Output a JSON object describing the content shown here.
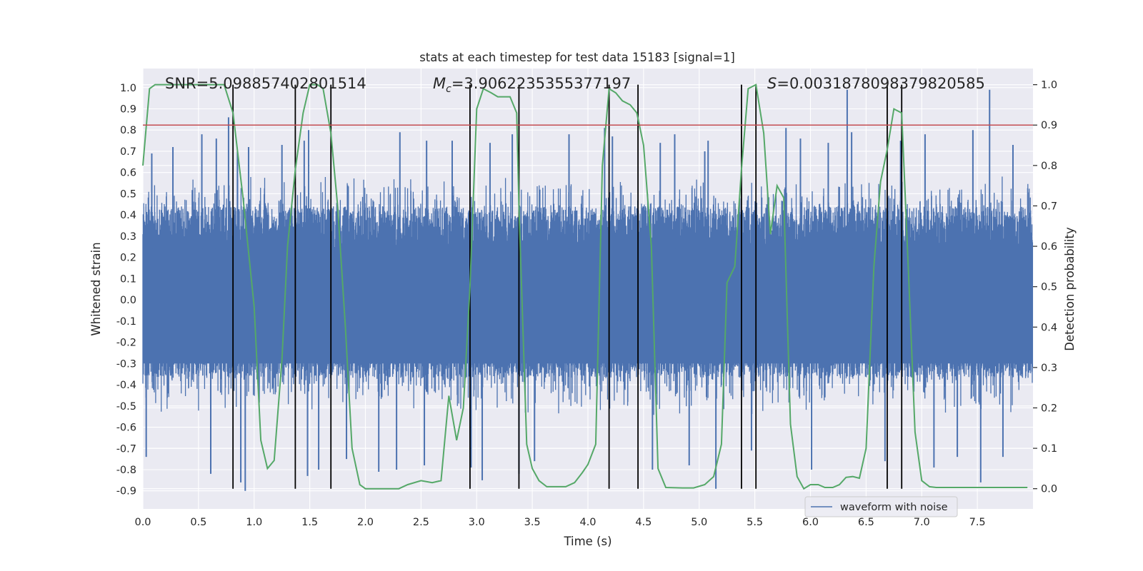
{
  "chart_data": {
    "type": "line",
    "title": "stats at each timestep for test data 15183 [signal=1]",
    "xlabel": "Time (s)",
    "ylabel": "Whitened strain",
    "y2label": "Detection probability",
    "xlim": [
      0.0,
      8.0
    ],
    "ylim": [
      -0.985,
      1.09
    ],
    "y2lim": [
      -0.05,
      1.04
    ],
    "xticks": [
      "0.0",
      "0.5",
      "1.0",
      "1.5",
      "2.0",
      "2.5",
      "3.0",
      "3.5",
      "4.0",
      "4.5",
      "5.0",
      "5.5",
      "6.0",
      "6.5",
      "7.0",
      "7.5"
    ],
    "yticks": [
      "1.0",
      "0.9",
      "0.8",
      "0.7",
      "0.6",
      "0.5",
      "0.4",
      "0.3",
      "0.2",
      "0.1",
      "0.0",
      "-0.1",
      "-0.2",
      "-0.3",
      "-0.4",
      "-0.5",
      "-0.6",
      "-0.7",
      "-0.8",
      "-0.9"
    ],
    "y2ticks": [
      "1.0",
      "0.9",
      "0.8",
      "0.7",
      "0.6",
      "0.5",
      "0.4",
      "0.3",
      "0.2",
      "0.1",
      "0.0"
    ],
    "grid": true,
    "legend": {
      "position": "bottom-right",
      "entries": [
        "waveform with noise"
      ]
    },
    "annotations": {
      "snr": "SNR=5.098857402801514",
      "mc_symbol": "M",
      "mc_sub": "c",
      "mc_value": "=3.9062235355377197",
      "s_symbol": "S",
      "s_value": "=0.0031878098379820585"
    },
    "threshold": 0.9,
    "vlines": [
      0.81,
      1.37,
      1.69,
      2.94,
      3.38,
      4.19,
      4.45,
      5.38,
      5.51,
      6.69,
      6.82
    ],
    "series": [
      {
        "name": "waveform with noise",
        "noise_envelope_pos": 0.42,
        "noise_envelope_neg": -0.35,
        "spikes": [
          [
            0.03,
            -0.74
          ],
          [
            0.08,
            0.69
          ],
          [
            0.27,
            0.72
          ],
          [
            0.53,
            0.78
          ],
          [
            0.61,
            -0.82
          ],
          [
            0.66,
            0.76
          ],
          [
            0.77,
            0.86
          ],
          [
            0.85,
            0.7
          ],
          [
            0.88,
            -0.86
          ],
          [
            0.92,
            -0.9
          ],
          [
            0.95,
            0.72
          ],
          [
            1.25,
            0.73
          ],
          [
            1.45,
            0.75
          ],
          [
            1.48,
            -0.83
          ],
          [
            1.49,
            0.8
          ],
          [
            1.58,
            -0.8
          ],
          [
            1.83,
            -0.75
          ],
          [
            2.12,
            -0.81
          ],
          [
            2.28,
            -0.8
          ],
          [
            2.31,
            0.79
          ],
          [
            2.53,
            -0.78
          ],
          [
            2.55,
            0.75
          ],
          [
            2.78,
            0.75
          ],
          [
            2.95,
            -0.79
          ],
          [
            3.05,
            -0.85
          ],
          [
            3.12,
            0.74
          ],
          [
            3.32,
            0.78
          ],
          [
            3.38,
            -0.82
          ],
          [
            3.52,
            -0.76
          ],
          [
            3.83,
            0.78
          ],
          [
            4.15,
            0.81
          ],
          [
            4.22,
            0.77
          ],
          [
            4.58,
            -0.8
          ],
          [
            4.65,
            0.74
          ],
          [
            4.78,
            0.78
          ],
          [
            4.91,
            -0.78
          ],
          [
            5.05,
            0.7
          ],
          [
            5.08,
            0.75
          ],
          [
            5.15,
            -0.89
          ],
          [
            5.47,
            -0.71
          ],
          [
            5.78,
            0.81
          ],
          [
            5.91,
            0.76
          ],
          [
            6.01,
            -0.8
          ],
          [
            6.16,
            0.74
          ],
          [
            6.33,
            0.99
          ],
          [
            6.37,
            0.79
          ],
          [
            6.67,
            -0.76
          ],
          [
            6.81,
            0.75
          ],
          [
            7.03,
            0.78
          ],
          [
            7.11,
            -0.79
          ],
          [
            7.32,
            -0.74
          ],
          [
            7.46,
            0.8
          ],
          [
            7.53,
            -0.86
          ],
          [
            7.61,
            0.99
          ],
          [
            7.73,
            -0.74
          ],
          [
            7.82,
            0.73
          ]
        ]
      },
      {
        "name": "detection probability",
        "x": [
          0.0,
          0.06,
          0.11,
          0.2,
          0.4,
          0.6,
          0.73,
          0.81,
          0.9,
          1.0,
          1.06,
          1.12,
          1.18,
          1.25,
          1.3,
          1.37,
          1.44,
          1.5,
          1.57,
          1.62,
          1.69,
          1.75,
          1.82,
          1.88,
          1.95,
          2.0,
          2.06,
          2.12,
          2.19,
          2.3,
          2.38,
          2.5,
          2.6,
          2.68,
          2.75,
          2.82,
          2.88,
          2.94,
          3.0,
          3.06,
          3.13,
          3.19,
          3.25,
          3.3,
          3.36,
          3.38,
          3.45,
          3.5,
          3.56,
          3.63,
          3.7,
          3.8,
          3.88,
          3.95,
          4.0,
          4.07,
          4.13,
          4.19,
          4.25,
          4.31,
          4.38,
          4.44,
          4.5,
          4.57,
          4.63,
          4.7,
          4.85,
          4.95,
          5.05,
          5.13,
          5.2,
          5.25,
          5.32,
          5.38,
          5.44,
          5.51,
          5.58,
          5.64,
          5.7,
          5.76,
          5.82,
          5.88,
          5.94,
          6.0,
          6.07,
          6.13,
          6.2,
          6.26,
          6.32,
          6.38,
          6.44,
          6.5,
          6.57,
          6.63,
          6.69,
          6.75,
          6.82,
          6.88,
          6.94,
          7.0,
          7.07,
          7.13,
          7.25,
          7.4,
          7.6,
          7.8,
          7.95
        ],
        "y": [
          0.8,
          0.99,
          1.0,
          1.0,
          1.0,
          1.0,
          1.0,
          0.93,
          0.72,
          0.45,
          0.12,
          0.05,
          0.07,
          0.32,
          0.6,
          0.79,
          0.93,
          1.0,
          1.0,
          0.99,
          0.88,
          0.7,
          0.4,
          0.1,
          0.01,
          0.0,
          0.0,
          0.0,
          0.0,
          0.0,
          0.01,
          0.02,
          0.015,
          0.02,
          0.23,
          0.12,
          0.2,
          0.5,
          0.94,
          0.99,
          0.98,
          0.97,
          0.97,
          0.97,
          0.93,
          0.7,
          0.11,
          0.05,
          0.02,
          0.005,
          0.005,
          0.005,
          0.015,
          0.04,
          0.06,
          0.11,
          0.8,
          0.99,
          0.98,
          0.96,
          0.95,
          0.93,
          0.85,
          0.6,
          0.05,
          0.003,
          0.002,
          0.002,
          0.01,
          0.03,
          0.11,
          0.51,
          0.55,
          0.79,
          0.99,
          1.0,
          0.88,
          0.63,
          0.75,
          0.72,
          0.16,
          0.03,
          0.0,
          0.01,
          0.01,
          0.003,
          0.003,
          0.01,
          0.028,
          0.03,
          0.026,
          0.1,
          0.55,
          0.76,
          0.84,
          0.94,
          0.93,
          0.54,
          0.14,
          0.02,
          0.005,
          0.003,
          0.003,
          0.003,
          0.003,
          0.003,
          0.003
        ]
      }
    ]
  },
  "colors": {
    "plot_bg": "#eaeaf2",
    "grid": "#ffffff",
    "waveform": "#4c72b0",
    "probability": "#55a868",
    "threshold": "#c44e52",
    "vline": "#000000",
    "text": "#262626"
  }
}
